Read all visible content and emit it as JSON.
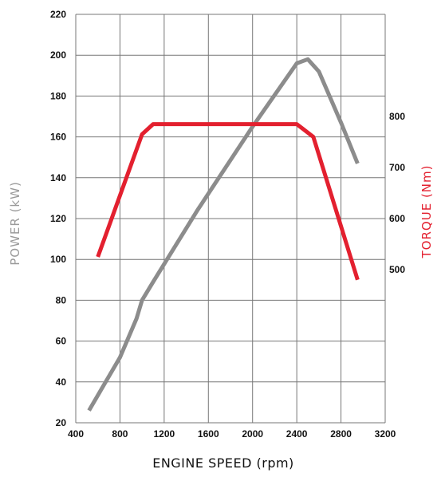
{
  "chart_data": {
    "type": "line",
    "xlabel": "ENGINE SPEED (rpm)",
    "ylabel_left": "POWER (kW)",
    "ylabel_right": "TORQUE (Nm)",
    "xlim": [
      400,
      3200
    ],
    "x_ticks": [
      400,
      800,
      1200,
      1600,
      2000,
      2400,
      2800,
      3200
    ],
    "ylim_left": [
      20,
      220
    ],
    "y_ticks_left": [
      20,
      40,
      60,
      80,
      100,
      120,
      140,
      160,
      180,
      200,
      220
    ],
    "ylim_right": [
      200,
      1000
    ],
    "y_ticks_right": [
      500,
      600,
      700,
      800
    ],
    "grid": true,
    "series": [
      {
        "axis": "left",
        "color": "#8c8c8c",
        "points": [
          [
            520,
            26
          ],
          [
            800,
            52
          ],
          [
            950,
            71
          ],
          [
            1000,
            80
          ],
          [
            1100,
            89
          ],
          [
            1500,
            124
          ],
          [
            2000,
            165
          ],
          [
            2400,
            196
          ],
          [
            2500,
            198
          ],
          [
            2600,
            192
          ],
          [
            2800,
            167
          ],
          [
            2950,
            147
          ]
        ]
      },
      {
        "axis": "right",
        "color": "#e3202f",
        "points": [
          [
            600,
            525
          ],
          [
            1000,
            765
          ],
          [
            1100,
            785
          ],
          [
            2400,
            785
          ],
          [
            2550,
            760
          ],
          [
            2700,
            655
          ],
          [
            2950,
            480
          ]
        ]
      }
    ]
  }
}
